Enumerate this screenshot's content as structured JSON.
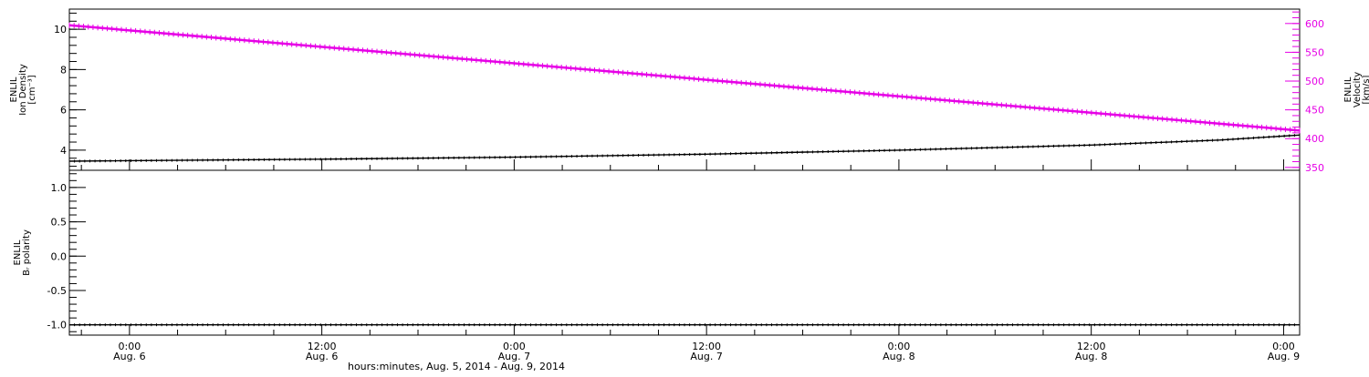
{
  "chart_data": [
    {
      "type": "line",
      "x_range": [
        "2014-08-05T20:15",
        "2014-08-09T01:00"
      ],
      "yleft": {
        "label_lines": [
          "ENLIL",
          "Ion Density",
          "[cm⁻³]"
        ],
        "ylim": [
          3.0,
          11.0
        ],
        "ticks": [
          4,
          6,
          8,
          10
        ],
        "tick_labels": [
          "4",
          "6",
          "8",
          "10"
        ]
      },
      "yright": {
        "label_lines": [
          "ENLIL",
          "Velocity",
          "[km/s]"
        ],
        "ylim": [
          345,
          625
        ],
        "ticks": [
          350,
          400,
          450,
          500,
          550,
          600
        ],
        "tick_labels": [
          "350",
          "400",
          "450",
          "500",
          "550",
          "600"
        ],
        "color": "#e600e6"
      },
      "series": [
        {
          "axis": "left",
          "color": "#000000",
          "x": [
            "2014-08-05T20:15",
            "2014-08-06T12:00",
            "2014-08-07T00:00",
            "2014-08-07T12:00",
            "2014-08-08T00:00",
            "2014-08-08T12:00",
            "2014-08-08T20:00",
            "2014-08-09T01:00"
          ],
          "y": [
            3.45,
            3.55,
            3.65,
            3.8,
            4.0,
            4.25,
            4.5,
            4.75
          ]
        },
        {
          "axis": "right",
          "color": "#e600e6",
          "x": [
            "2014-08-05T20:15",
            "2014-08-09T01:00"
          ],
          "y": [
            597,
            414
          ]
        }
      ]
    },
    {
      "type": "line",
      "x_range": [
        "2014-08-05T20:15",
        "2014-08-09T01:00"
      ],
      "yleft": {
        "label_lines": [
          "ENLIL",
          "Bᵣ polarity"
        ],
        "ylim": [
          -1.15,
          1.25
        ],
        "ticks": [
          -1.0,
          -0.5,
          0.0,
          0.5,
          1.0
        ],
        "tick_labels": [
          "-1.0",
          "-0.5",
          "0.0",
          "0.5",
          "1.0"
        ]
      },
      "series": [
        {
          "axis": "left",
          "color": "#000000",
          "x": [
            "2014-08-05T20:15",
            "2014-08-09T01:00"
          ],
          "y": [
            -1.0,
            -1.0
          ]
        }
      ]
    }
  ],
  "x_axis": {
    "ticks": [
      {
        "time": "2014-08-06T00:00",
        "line1": "0:00",
        "line2": "Aug. 6"
      },
      {
        "time": "2014-08-06T12:00",
        "line1": "12:00",
        "line2": "Aug. 6"
      },
      {
        "time": "2014-08-07T00:00",
        "line1": "0:00",
        "line2": "Aug. 7"
      },
      {
        "time": "2014-08-07T12:00",
        "line1": "12:00",
        "line2": "Aug. 7"
      },
      {
        "time": "2014-08-08T00:00",
        "line1": "0:00",
        "line2": "Aug. 8"
      },
      {
        "time": "2014-08-08T12:00",
        "line1": "12:00",
        "line2": "Aug. 8"
      },
      {
        "time": "2014-08-09T00:00",
        "line1": "0:00",
        "line2": "Aug. 9"
      }
    ],
    "xlabel": "hours:minutes, Aug.  5, 2014 - Aug.  9, 2014"
  }
}
